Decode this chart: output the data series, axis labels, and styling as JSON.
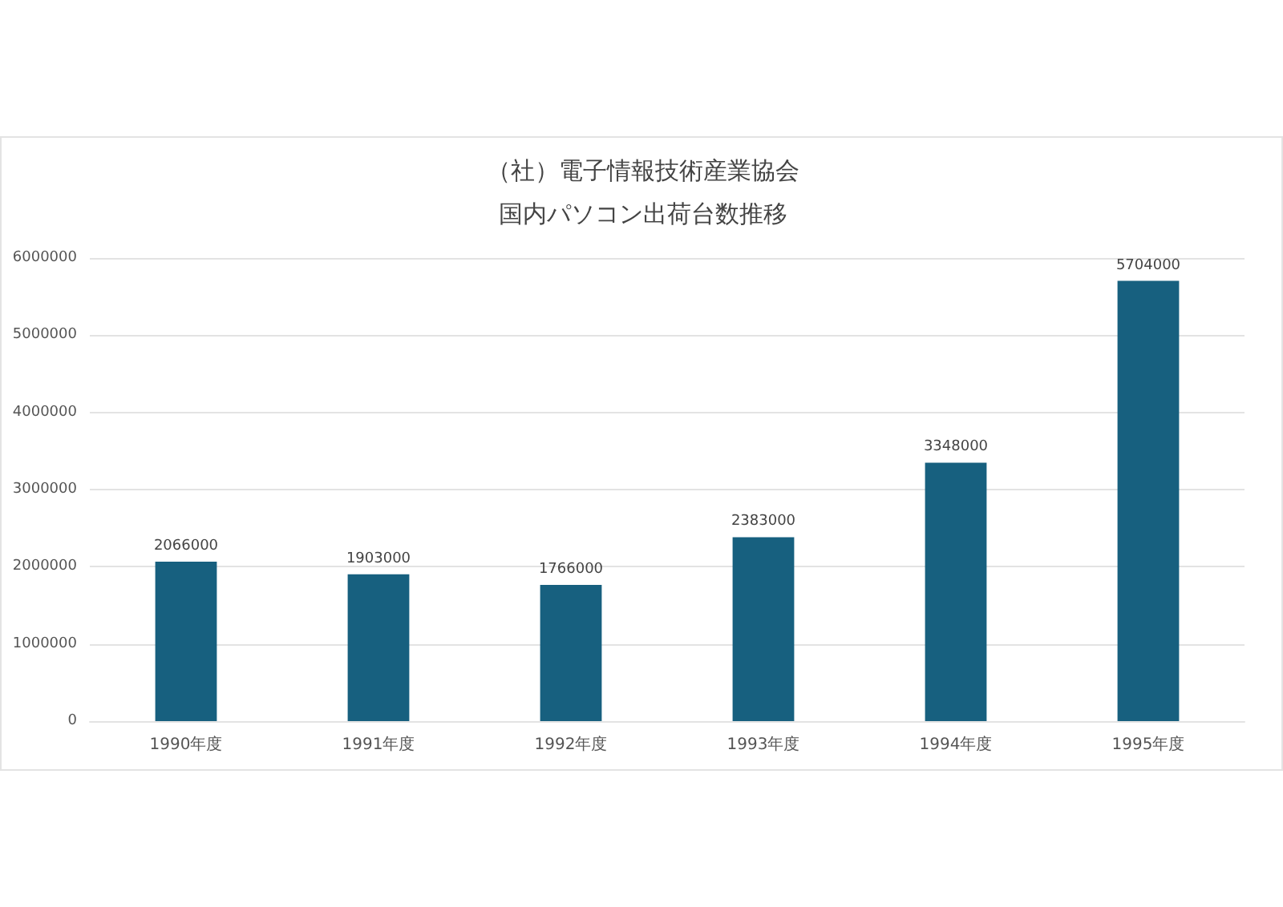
{
  "chart_data": {
    "type": "bar",
    "title": "（社）電子情報技術産業協会",
    "subtitle": "国内パソコン出荷台数推移",
    "categories": [
      "1990年度",
      "1991年度",
      "1992年度",
      "1993年度",
      "1994年度",
      "1995年度"
    ],
    "values": [
      2066000,
      1903000,
      1766000,
      2383000,
      3348000,
      5704000
    ],
    "color": "#17607f",
    "ylim": [
      0,
      6000000
    ],
    "yticks": [
      0,
      1000000,
      2000000,
      3000000,
      4000000,
      5000000,
      6000000
    ],
    "grid": "y",
    "data_labels": true
  }
}
